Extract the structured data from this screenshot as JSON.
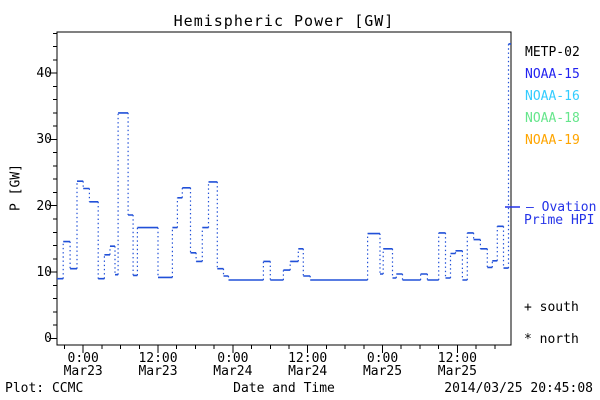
{
  "chart_data": {
    "type": "line",
    "line_style": "dotted-steps",
    "title": "Hemispheric Power [GW]",
    "xlabel": "Date and Time",
    "ylabel": "P [GW]",
    "ylim": [
      -1,
      46.2
    ],
    "xlim_hours": [
      -4.2,
      68.6
    ],
    "y_major_ticks": [
      0,
      10,
      20,
      30,
      40
    ],
    "y_minor_step": 2,
    "x_minor_step_hours": 3,
    "x_major_ticks": [
      {
        "hours": 0,
        "time": "0:00",
        "date": "Mar23"
      },
      {
        "hours": 12,
        "time": "12:00",
        "date": "Mar23"
      },
      {
        "hours": 24,
        "time": "0:00",
        "date": "Mar24"
      },
      {
        "hours": 36,
        "time": "12:00",
        "date": "Mar24"
      },
      {
        "hours": 48,
        "time": "0:00",
        "date": "Mar25"
      },
      {
        "hours": 60,
        "time": "12:00",
        "date": "Mar25"
      }
    ],
    "series": [
      {
        "name": "Ovation Prime HPI",
        "color": "#2150d8",
        "x_hours": [
          -4.2,
          -3.2,
          -2.1,
          -1.0,
          0.0,
          1.0,
          2.4,
          3.4,
          4.3,
          5.1,
          5.6,
          7.2,
          8.0,
          8.7,
          12.0,
          14.3,
          15.1,
          15.9,
          17.2,
          18.1,
          19.1,
          20.1,
          21.5,
          22.5,
          23.3,
          28.9,
          30.0,
          32.1,
          33.2,
          34.5,
          35.3,
          36.4,
          45.6,
          47.6,
          48.1,
          49.6,
          50.2,
          51.2,
          54.1,
          55.2,
          57.0,
          58.1,
          58.9,
          59.7,
          60.8,
          61.6,
          62.6,
          63.7,
          64.8,
          65.6,
          66.4,
          67.4,
          68.2
        ],
        "p_gw": [
          9.0,
          14.6,
          10.5,
          23.7,
          22.6,
          20.6,
          9.0,
          12.6,
          13.9,
          9.6,
          34.0,
          18.6,
          9.5,
          16.7,
          9.2,
          16.7,
          21.2,
          22.7,
          12.9,
          11.6,
          16.7,
          23.6,
          10.5,
          9.4,
          8.8,
          11.6,
          8.8,
          10.3,
          11.6,
          13.5,
          9.4,
          8.8,
          15.8,
          9.7,
          13.5,
          9.1,
          9.7,
          8.8,
          9.7,
          8.8,
          15.9,
          9.1,
          12.8,
          13.2,
          8.8,
          15.9,
          14.9,
          13.5,
          10.7,
          11.7,
          16.9,
          10.6,
          44.4
        ],
        "x_end_hours": 68.6
      }
    ]
  },
  "legend": {
    "satellites": [
      {
        "label": "METP-02",
        "color": "#000000"
      },
      {
        "label": "NOAA-15",
        "color": "#2222f0"
      },
      {
        "label": "NOAA-16",
        "color": "#33ccff"
      },
      {
        "label": "NOAA-18",
        "color": "#66e68c"
      },
      {
        "label": "NOAA-19",
        "color": "#ffa500"
      }
    ],
    "ovation_line_1": "– Ovation",
    "ovation_line_2": "Prime HPI",
    "ovation_color": "#2433e8",
    "south": "+ south",
    "north": "* north"
  },
  "footer": {
    "left": "Plot: CCMC",
    "right": "2014/03/25 20:45:08"
  }
}
